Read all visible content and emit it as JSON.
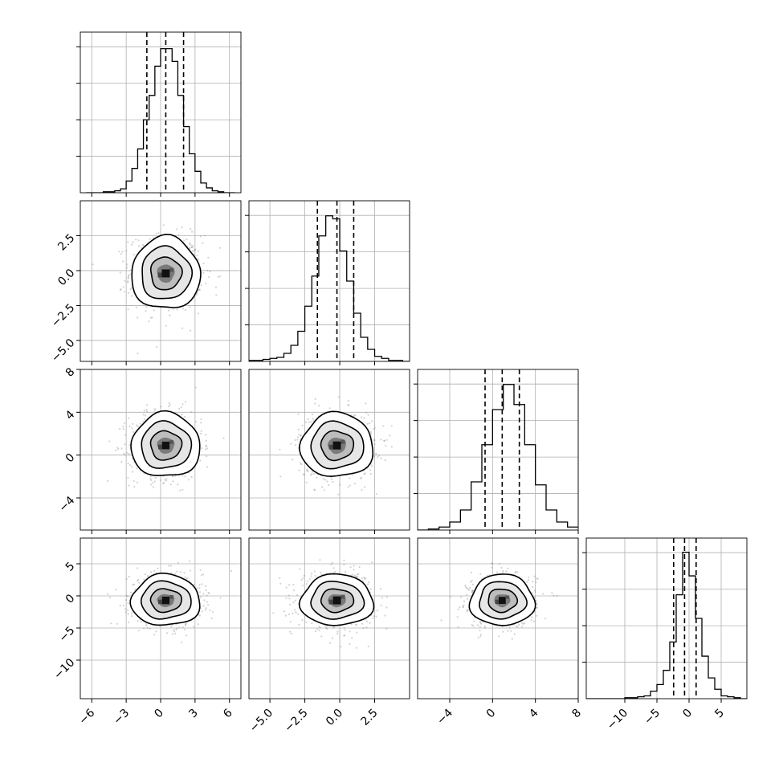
{
  "chart_data": {
    "type": "corner",
    "variables": 4,
    "grid": true,
    "diagonal_histograms": [
      {
        "bin_edges": [
          -6.5,
          -6,
          -5.5,
          -5,
          -4.5,
          -4,
          -3.5,
          -3,
          -2.5,
          -2,
          -1.5,
          -1,
          -0.5,
          0,
          0.5,
          1,
          1.5,
          2,
          2.5,
          3,
          3.5,
          4,
          4.5,
          5,
          5.5,
          6,
          6.5
        ],
        "counts": [
          0,
          0,
          0,
          1,
          1,
          2,
          4,
          12,
          25,
          45,
          75,
          100,
          130,
          148,
          148,
          135,
          100,
          68,
          40,
          22,
          10,
          5,
          2,
          1,
          0,
          0
        ],
        "quantiles": [
          -1.2,
          0.45,
          2.0
        ],
        "ylim": [
          0,
          165
        ]
      },
      {
        "bin_edges": [
          -6.5,
          -6,
          -5.5,
          -5,
          -4.5,
          -4,
          -3.5,
          -3,
          -2.5,
          -2,
          -1.5,
          -1,
          -0.5,
          0,
          0.5,
          1,
          1.5,
          2,
          2.5,
          3,
          3.5,
          4,
          4.5,
          5
        ],
        "counts": [
          1,
          1,
          2,
          3,
          4,
          8,
          16,
          30,
          55,
          85,
          125,
          145,
          142,
          110,
          80,
          48,
          24,
          12,
          5,
          3,
          1,
          1,
          0
        ],
        "quantiles": [
          -1.6,
          -0.2,
          1.0
        ],
        "ylim": [
          0,
          160
        ]
      },
      {
        "bin_edges": [
          -7,
          -6,
          -5,
          -4,
          -3,
          -2,
          -1,
          0,
          1,
          2,
          3,
          4,
          5,
          6,
          7,
          8
        ],
        "counts": [
          0,
          1,
          3,
          8,
          20,
          48,
          85,
          120,
          145,
          125,
          85,
          45,
          20,
          8,
          3
        ],
        "quantiles": [
          -0.7,
          0.9,
          2.5
        ],
        "ylim": [
          0,
          160
        ]
      },
      {
        "bin_edges": [
          -16,
          -15,
          -14,
          -13,
          -12,
          -11,
          -10,
          -9,
          -8,
          -7,
          -6,
          -5,
          -4,
          -3,
          -2,
          -1,
          0,
          1,
          2,
          3,
          4,
          5,
          6,
          7,
          8,
          9
        ],
        "counts": [
          0,
          0,
          0,
          0,
          0,
          0,
          1,
          1,
          2,
          3,
          8,
          15,
          30,
          60,
          110,
          155,
          130,
          85,
          45,
          22,
          10,
          3,
          2,
          1,
          0
        ],
        "quantiles": [
          -2.4,
          -0.7,
          1.1
        ],
        "ylim": [
          0,
          170
        ]
      }
    ],
    "ranges": [
      [
        -7,
        7
      ],
      [
        -6.5,
        5
      ],
      [
        -7,
        8
      ],
      [
        -16,
        9
      ]
    ],
    "ticks": [
      {
        "values": [
          -6,
          -3,
          0,
          3,
          6
        ],
        "labels": [
          "−6",
          "−3",
          "0",
          "3",
          "6"
        ]
      },
      {
        "values": [
          -5,
          -2.5,
          0,
          2.5
        ],
        "labels": [
          "−5.0",
          "−2.5",
          "0.0",
          "2.5"
        ]
      },
      {
        "values": [
          -4,
          0,
          4,
          8
        ],
        "labels": [
          "−4",
          "0",
          "4",
          "8"
        ]
      },
      {
        "values": [
          -10,
          -5,
          0,
          5
        ],
        "labels": [
          "−10",
          "−5",
          "0",
          "5"
        ]
      }
    ],
    "distributions": [
      {
        "mean": 0.45,
        "sd": 1.5
      },
      {
        "mean": -0.2,
        "sd": 1.3
      },
      {
        "mean": 0.9,
        "sd": 1.5
      },
      {
        "mean": -0.7,
        "sd": 2.0
      }
    ],
    "colors": {
      "line": "#000000",
      "grid": "#b0b0b0",
      "scatter": "#808080"
    }
  }
}
